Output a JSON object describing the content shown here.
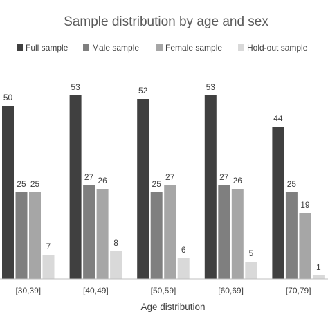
{
  "chart_data": {
    "type": "bar",
    "title": "Sample distribution by age and sex",
    "xlabel": "Age distribution",
    "ylabel": "",
    "ylim": [
      0,
      60
    ],
    "grid": false,
    "legend_position": "top",
    "categories": [
      "[30,39]",
      "[40,49]",
      "[50,59]",
      "[60,69]",
      "[70,79]"
    ],
    "series": [
      {
        "name": "Full sample",
        "color": "#404040",
        "values": [
          50,
          53,
          52,
          53,
          44
        ]
      },
      {
        "name": "Male sample",
        "color": "#7f7f7f",
        "values": [
          25,
          27,
          25,
          27,
          25
        ]
      },
      {
        "name": "Female sample",
        "color": "#a6a6a6",
        "values": [
          25,
          26,
          27,
          26,
          19
        ]
      },
      {
        "name": "Hold-out sample",
        "color": "#d9d9d9",
        "values": [
          7,
          8,
          6,
          5,
          1
        ]
      }
    ]
  }
}
